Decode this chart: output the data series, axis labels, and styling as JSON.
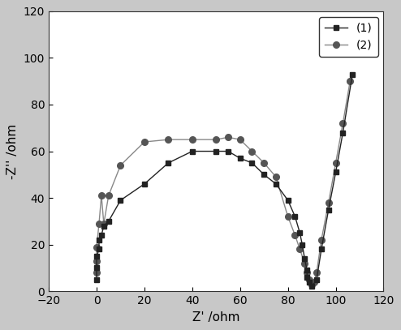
{
  "series1_x": [
    0,
    0,
    0,
    1,
    1,
    2,
    3,
    5,
    10,
    20,
    30,
    40,
    50,
    55,
    60,
    65,
    70,
    75,
    80,
    83,
    85,
    86,
    87,
    88,
    88,
    89,
    90,
    92,
    94,
    97,
    100,
    103,
    107
  ],
  "series1_y": [
    5,
    10,
    15,
    18,
    22,
    24,
    28,
    30,
    39,
    46,
    55,
    60,
    60,
    60,
    57,
    55,
    50,
    46,
    39,
    32,
    25,
    20,
    14,
    9,
    6,
    4,
    2,
    5,
    18,
    35,
    51,
    68,
    93
  ],
  "series2_x": [
    0,
    0,
    0,
    1,
    2,
    3,
    5,
    10,
    20,
    30,
    40,
    50,
    55,
    60,
    65,
    70,
    75,
    80,
    83,
    85,
    87,
    88,
    89,
    90,
    91,
    92,
    94,
    97,
    100,
    103,
    106
  ],
  "series2_y": [
    8,
    13,
    19,
    29,
    41,
    29,
    41,
    54,
    64,
    65,
    65,
    65,
    66,
    65,
    60,
    55,
    49,
    32,
    24,
    18,
    12,
    8,
    5,
    3,
    4,
    8,
    22,
    38,
    55,
    72,
    90
  ],
  "color1": "#222222",
  "color2": "#555555",
  "line_color2": "#888888",
  "marker1": "s",
  "marker2": "o",
  "linewidth": 1.0,
  "markersize1": 5,
  "markersize2": 5.5,
  "xlabel": "Z' /ohm",
  "ylabel": "-Z'' /ohm",
  "xlim": [
    -20,
    120
  ],
  "ylim": [
    0,
    120
  ],
  "xticks": [
    -20,
    0,
    20,
    40,
    60,
    80,
    100,
    120
  ],
  "yticks": [
    0,
    20,
    40,
    60,
    80,
    100,
    120
  ],
  "legend_labels": [
    "(1)",
    "(2)"
  ],
  "plot_bg": "#ffffff",
  "figure_facecolor": "#c8c8c8"
}
